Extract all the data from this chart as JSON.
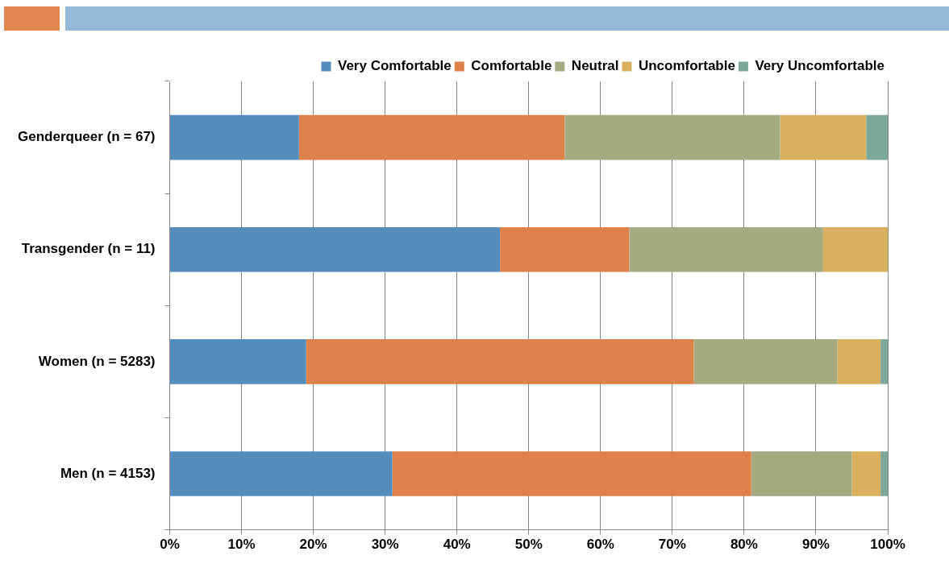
{
  "chart_data": {
    "type": "bar",
    "orientation": "horizontal",
    "stacked": true,
    "categories": [
      "Genderqueer (n = 67)",
      "Transgender (n = 11)",
      "Women (n = 5283)",
      "Men (n = 4153)"
    ],
    "series": [
      {
        "name": "Very Comfortable",
        "color": "#558dbd",
        "values": [
          18,
          46,
          19,
          31
        ]
      },
      {
        "name": "Comfortable",
        "color": "#de814b",
        "values": [
          37,
          18,
          54,
          50
        ]
      },
      {
        "name": "Neutral",
        "color": "#a5aa81",
        "values": [
          30,
          27,
          20,
          14
        ]
      },
      {
        "name": "Uncomfortable",
        "color": "#d9b05e",
        "values": [
          12,
          9,
          6,
          4
        ]
      },
      {
        "name": "Very Uncomfortable",
        "color": "#7ba89b",
        "values": [
          3,
          0,
          1,
          1
        ]
      }
    ],
    "xlim": [
      0,
      100
    ],
    "xticks": [
      {
        "value": 0,
        "label": "0%"
      },
      {
        "value": 10,
        "label": "10%"
      },
      {
        "value": 20,
        "label": "20%"
      },
      {
        "value": 30,
        "label": "30%"
      },
      {
        "value": 40,
        "label": "40%"
      },
      {
        "value": 50,
        "label": "50%"
      },
      {
        "value": 60,
        "label": "60%"
      },
      {
        "value": 70,
        "label": "70%"
      },
      {
        "value": 80,
        "label": "80%"
      },
      {
        "value": 90,
        "label": "90%"
      },
      {
        "value": 100,
        "label": "100%"
      }
    ],
    "grid": "x",
    "legend": "top right"
  }
}
